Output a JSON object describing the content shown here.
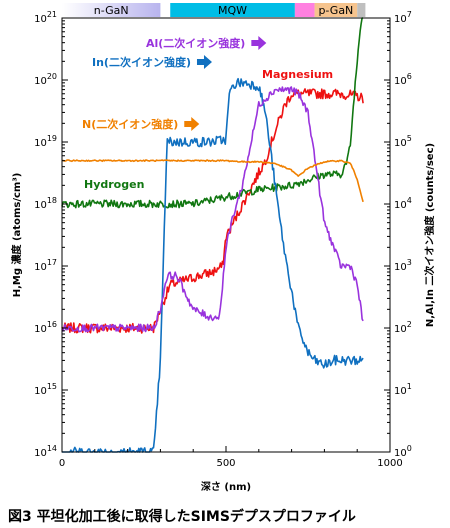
{
  "chart_data": {
    "type": "line",
    "title": "",
    "caption": "図3 平坦化加工後に取得したSIMSデプスプロファイル",
    "xlabel": "深さ (nm)",
    "ylabel_left": "H,Mg 濃度 (atoms/cm³)",
    "ylabel_right": "N,Al,In 二次イオン強度 (counts/sec)",
    "xlim": [
      0,
      1000
    ],
    "x_ticks": [
      0,
      500,
      1000
    ],
    "x_tick_labels": [
      "0",
      "500",
      "1000"
    ],
    "yleft_log": true,
    "yleft_lim": [
      100000000000000.0,
      1e+21
    ],
    "yleft_ticks": [
      {
        "base": "10",
        "exp": "14"
      },
      {
        "base": "10",
        "exp": "15"
      },
      {
        "base": "10",
        "exp": "16"
      },
      {
        "base": "10",
        "exp": "17"
      },
      {
        "base": "10",
        "exp": "18"
      },
      {
        "base": "10",
        "exp": "19"
      },
      {
        "base": "10",
        "exp": "20"
      },
      {
        "base": "10",
        "exp": "21"
      }
    ],
    "yright_log": true,
    "yright_lim": [
      1,
      10000000.0
    ],
    "yright_ticks": [
      {
        "base": "10",
        "exp": "0"
      },
      {
        "base": "10",
        "exp": "1"
      },
      {
        "base": "10",
        "exp": "2"
      },
      {
        "base": "10",
        "exp": "3"
      },
      {
        "base": "10",
        "exp": "4"
      },
      {
        "base": "10",
        "exp": "5"
      },
      {
        "base": "10",
        "exp": "6"
      },
      {
        "base": "10",
        "exp": "7"
      }
    ],
    "regions": [
      {
        "label": "n-GaN",
        "x": [
          0,
          300
        ],
        "color": "#c8c6f0",
        "fade": true
      },
      {
        "label": "MQW",
        "x": [
          330,
          710
        ],
        "color": "#00bde6",
        "fade": false
      },
      {
        "label": "",
        "x": [
          710,
          770
        ],
        "color": "#ff80e0",
        "fade": false
      },
      {
        "label": "p-GaN",
        "x": [
          770,
          900
        ],
        "color": "#f6c48e",
        "fade": false
      },
      {
        "label": "",
        "x": [
          900,
          925
        ],
        "color": "#bfbfbf",
        "fade": false
      }
    ],
    "grid": false,
    "series": [
      {
        "name": "Magnesium",
        "axis": "left",
        "color": "#ee1111",
        "noise": 0.08,
        "x": [
          0,
          50,
          100,
          150,
          200,
          260,
          280,
          300,
          330,
          380,
          420,
          460,
          490,
          500,
          530,
          580,
          620,
          650,
          680,
          700,
          750,
          800,
          850,
          900,
          920
        ],
        "y": [
          1e+16,
          1e+16,
          1e+16,
          1e+16,
          1e+16,
          1e+16,
          1e+16,
          2e+16,
          5e+16,
          6e+16,
          7e+16,
          8e+16,
          1e+17,
          3e+17,
          6e+17,
          2e+18,
          5e+18,
          1.5e+19,
          4e+19,
          6e+19,
          6e+19,
          6e+19,
          6e+19,
          5.5e+19,
          5e+19
        ]
      },
      {
        "name": "Hydrogen",
        "axis": "left",
        "color": "#117711",
        "noise": 0.06,
        "x": [
          0,
          100,
          200,
          300,
          400,
          500,
          600,
          700,
          800,
          850,
          870,
          880,
          890,
          900,
          910,
          920
        ],
        "y": [
          1e+18,
          1e+18,
          1e+18,
          1e+18,
          1e+18,
          1.3e+18,
          1.7e+18,
          2e+18,
          3e+18,
          3e+18,
          5e+18,
          1e+19,
          5e+19,
          2e+20,
          8e+20,
          1.5e+21
        ]
      },
      {
        "name": "In",
        "axis": "right",
        "color": "#1070c0",
        "noise": 0.08,
        "x": [
          0,
          50,
          100,
          150,
          200,
          250,
          280,
          300,
          320,
          340,
          400,
          450,
          500,
          510,
          530,
          560,
          600,
          620,
          640,
          660,
          680,
          700,
          720,
          750,
          770,
          800,
          830,
          870,
          920
        ],
        "y": [
          1,
          1,
          1,
          1,
          1,
          1,
          1,
          30,
          100000,
          100000,
          100000,
          100000,
          110000,
          600000,
          900000,
          900000,
          800000,
          300000,
          50000,
          8000,
          1500,
          400,
          100,
          40,
          30,
          25,
          30,
          30,
          30
        ]
      },
      {
        "name": "Al",
        "axis": "right",
        "color": "#9933dd",
        "noise": 0.06,
        "x": [
          0,
          100,
          200,
          280,
          300,
          320,
          350,
          400,
          450,
          480,
          500,
          520,
          550,
          600,
          650,
          700,
          720,
          750,
          800,
          850,
          880,
          900,
          920
        ],
        "y": [
          100,
          100,
          100,
          100,
          200,
          700,
          700,
          200,
          150,
          150,
          2000,
          6000,
          20000,
          400000,
          700000,
          700000,
          600000,
          300000,
          5000,
          1000,
          1000,
          500,
          100
        ]
      },
      {
        "name": "N",
        "axis": "right",
        "color": "#f08000",
        "noise": 0.01,
        "x": [
          0,
          100,
          200,
          300,
          400,
          500,
          550,
          600,
          650,
          700,
          720,
          750,
          800,
          850,
          880,
          900,
          920
        ],
        "y": [
          50000,
          50000,
          50000,
          50000,
          50000,
          50000,
          48000,
          48000,
          45000,
          35000,
          28000,
          38000,
          48000,
          50000,
          45000,
          25000,
          10000
        ]
      }
    ],
    "annotations": [
      {
        "text": "Al(二次イオン強度)",
        "color": "#9933dd",
        "arrow": true
      },
      {
        "text": "In(二次イオン強度)",
        "color": "#1070c0",
        "arrow": true
      },
      {
        "text": "Magnesium",
        "color": "#ee1111",
        "arrow": false
      },
      {
        "text": "N(二次イオン強度)",
        "color": "#f08000",
        "arrow": true
      },
      {
        "text": "Hydrogen",
        "color": "#117711",
        "arrow": false
      }
    ]
  }
}
